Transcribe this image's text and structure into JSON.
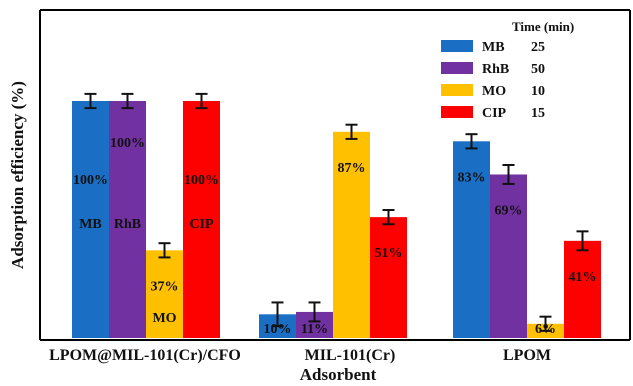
{
  "chart_data": {
    "type": "bar",
    "title": "",
    "xlabel": "Adsorbent",
    "ylabel": "Adsorption efficiency (%)",
    "ylim": [
      0,
      100
    ],
    "categories": [
      "LPOM@MIL-101(Cr)/CFO",
      "MIL-101(Cr)",
      "LPOM"
    ],
    "legend": {
      "title": "Time (min)",
      "position": "top-right"
    },
    "series": [
      {
        "name": "MB",
        "time": "25",
        "color": "#1a6fc4",
        "values": [
          100,
          10,
          83
        ],
        "errors": [
          3,
          5,
          3
        ],
        "labels": [
          "100%",
          "10%",
          "83%"
        ]
      },
      {
        "name": "RhB",
        "time": "50",
        "color": "#7131a0",
        "values": [
          100,
          11,
          69
        ],
        "errors": [
          3,
          4,
          4
        ],
        "labels": [
          "100%",
          "11%",
          "69%"
        ]
      },
      {
        "name": "MO",
        "time": "10",
        "color": "#ffc000",
        "values": [
          37,
          87,
          6
        ],
        "errors": [
          3,
          3,
          3
        ],
        "labels": [
          "37%",
          "87%",
          "6%"
        ]
      },
      {
        "name": "CIP",
        "time": "15",
        "color": "#fd0000",
        "values": [
          100,
          51,
          41
        ],
        "errors": [
          3,
          3,
          4
        ],
        "labels": [
          "100%",
          "51%",
          "41%"
        ]
      }
    ],
    "bar_tags": [
      "MB",
      "RhB",
      "MO",
      "CIP"
    ]
  }
}
